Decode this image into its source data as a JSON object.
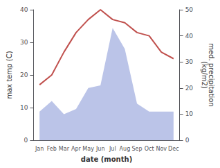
{
  "chart_data": {
    "type": "line",
    "xlabel": "date (month)",
    "ylabel": "max temp (C)",
    "y2label": "med. precipitation\n(kg/m2)",
    "categories": [
      "Jan",
      "Feb",
      "Mar",
      "Apr",
      "May",
      "Jun",
      "Jul",
      "Aug",
      "Sep",
      "Oct",
      "Nov",
      "Dec"
    ],
    "series": [
      {
        "type": "area",
        "axis": "y2",
        "color": "#bbc4e8",
        "values": [
          11,
          15,
          10,
          12,
          20,
          21,
          43,
          35,
          14,
          11,
          11,
          11
        ]
      },
      {
        "type": "line",
        "color": "#c0504d",
        "values": [
          17,
          20,
          27,
          33,
          37,
          40,
          37,
          36,
          33,
          32,
          27,
          25
        ]
      }
    ],
    "ylim": [
      0,
      40
    ],
    "yticks": [
      0,
      10,
      20,
      30,
      40
    ],
    "y2lim": [
      0,
      50
    ],
    "y2ticks": [
      0,
      10,
      20,
      30,
      40,
      50
    ],
    "grid": false
  }
}
